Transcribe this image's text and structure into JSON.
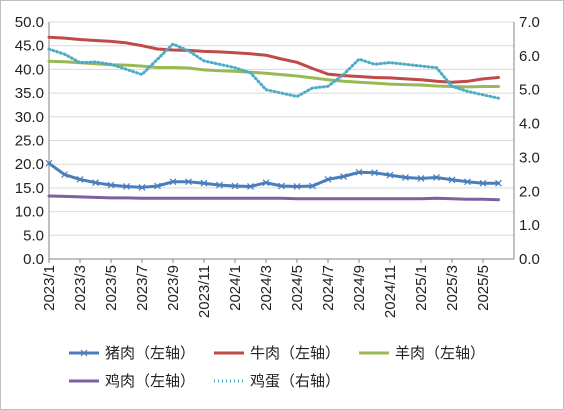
{
  "chart_data": {
    "type": "line",
    "title": "",
    "x_tick_labels": [
      "2023/1",
      "2023/3",
      "2023/5",
      "2023/7",
      "2023/9",
      "2023/11",
      "2024/1",
      "2024/3",
      "2024/5",
      "2024/7",
      "2024/9",
      "2024/11",
      "2025/1",
      "2025/3",
      "2025/5"
    ],
    "x_range": [
      "2023/1",
      "2025/6"
    ],
    "y_left": {
      "range": [
        0,
        50
      ],
      "tick_labels": [
        "0.0",
        "5.0",
        "10.0",
        "15.0",
        "20.0",
        "25.0",
        "30.0",
        "35.0",
        "40.0",
        "45.0",
        "50.0"
      ]
    },
    "y_right": {
      "range": [
        0,
        7
      ],
      "tick_labels": [
        "0.0",
        "1.0",
        "2.0",
        "3.0",
        "4.0",
        "5.0",
        "6.0",
        "7.0"
      ]
    },
    "grid": "horizontal, left axis",
    "legend_position": "bottom",
    "series": [
      {
        "name": "猪肉（左轴）",
        "axis": "left",
        "color": "#4a7ebb",
        "style": "line-with-markers",
        "points": [
          [
            "2023/1",
            20.2
          ],
          [
            "2023/2",
            17.8
          ],
          [
            "2023/3",
            16.8
          ],
          [
            "2023/4",
            16.1
          ],
          [
            "2023/5",
            15.6
          ],
          [
            "2023/6",
            15.3
          ],
          [
            "2023/7",
            15.1
          ],
          [
            "2023/8",
            15.4
          ],
          [
            "2023/9",
            16.3
          ],
          [
            "2023/10",
            16.3
          ],
          [
            "2023/11",
            16.0
          ],
          [
            "2023/12",
            15.6
          ],
          [
            "2024/1",
            15.4
          ],
          [
            "2024/2",
            15.3
          ],
          [
            "2024/3",
            16.1
          ],
          [
            "2024/4",
            15.4
          ],
          [
            "2024/5",
            15.3
          ],
          [
            "2024/6",
            15.4
          ],
          [
            "2024/7",
            16.8
          ],
          [
            "2024/8",
            17.4
          ],
          [
            "2024/9",
            18.3
          ],
          [
            "2024/10",
            18.2
          ],
          [
            "2024/11",
            17.7
          ],
          [
            "2024/12",
            17.2
          ],
          [
            "2025/1",
            17.0
          ],
          [
            "2025/2",
            17.2
          ],
          [
            "2025/3",
            16.7
          ],
          [
            "2025/4",
            16.3
          ],
          [
            "2025/5",
            16.0
          ],
          [
            "2025/6",
            16.0
          ]
        ]
      },
      {
        "name": "牛肉（左轴）",
        "axis": "left",
        "color": "#be4b48",
        "style": "line",
        "points": [
          [
            "2023/1",
            46.8
          ],
          [
            "2023/2",
            46.6
          ],
          [
            "2023/3",
            46.3
          ],
          [
            "2023/4",
            46.1
          ],
          [
            "2023/5",
            45.9
          ],
          [
            "2023/6",
            45.6
          ],
          [
            "2023/7",
            45.0
          ],
          [
            "2023/8",
            44.3
          ],
          [
            "2023/9",
            44.1
          ],
          [
            "2023/10",
            44.0
          ],
          [
            "2023/11",
            43.8
          ],
          [
            "2023/12",
            43.7
          ],
          [
            "2024/1",
            43.5
          ],
          [
            "2024/2",
            43.3
          ],
          [
            "2024/3",
            43.0
          ],
          [
            "2024/4",
            42.2
          ],
          [
            "2024/5",
            41.5
          ],
          [
            "2024/6",
            40.2
          ],
          [
            "2024/7",
            39.0
          ],
          [
            "2024/8",
            38.7
          ],
          [
            "2024/9",
            38.5
          ],
          [
            "2024/10",
            38.3
          ],
          [
            "2024/11",
            38.2
          ],
          [
            "2024/12",
            38.0
          ],
          [
            "2025/1",
            37.8
          ],
          [
            "2025/2",
            37.5
          ],
          [
            "2025/3",
            37.3
          ],
          [
            "2025/4",
            37.5
          ],
          [
            "2025/5",
            38.0
          ],
          [
            "2025/6",
            38.3
          ]
        ]
      },
      {
        "name": "羊肉（左轴）",
        "axis": "left",
        "color": "#98b954",
        "style": "line",
        "points": [
          [
            "2023/1",
            41.7
          ],
          [
            "2023/2",
            41.6
          ],
          [
            "2023/3",
            41.4
          ],
          [
            "2023/4",
            41.2
          ],
          [
            "2023/5",
            41.0
          ],
          [
            "2023/6",
            40.9
          ],
          [
            "2023/7",
            40.7
          ],
          [
            "2023/8",
            40.4
          ],
          [
            "2023/9",
            40.4
          ],
          [
            "2023/10",
            40.3
          ],
          [
            "2023/11",
            39.9
          ],
          [
            "2023/12",
            39.7
          ],
          [
            "2024/1",
            39.6
          ],
          [
            "2024/2",
            39.4
          ],
          [
            "2024/3",
            39.2
          ],
          [
            "2024/4",
            38.9
          ],
          [
            "2024/5",
            38.6
          ],
          [
            "2024/6",
            38.2
          ],
          [
            "2024/7",
            37.8
          ],
          [
            "2024/8",
            37.5
          ],
          [
            "2024/9",
            37.3
          ],
          [
            "2024/10",
            37.1
          ],
          [
            "2024/11",
            36.9
          ],
          [
            "2024/12",
            36.8
          ],
          [
            "2025/1",
            36.7
          ],
          [
            "2025/2",
            36.5
          ],
          [
            "2025/3",
            36.4
          ],
          [
            "2025/4",
            36.3
          ],
          [
            "2025/5",
            36.4
          ],
          [
            "2025/6",
            36.4
          ]
        ]
      },
      {
        "name": "鸡肉（左轴）",
        "axis": "left",
        "color": "#7d60a0",
        "style": "line",
        "points": [
          [
            "2023/1",
            13.3
          ],
          [
            "2023/2",
            13.2
          ],
          [
            "2023/3",
            13.1
          ],
          [
            "2023/4",
            13.0
          ],
          [
            "2023/5",
            12.9
          ],
          [
            "2023/6",
            12.9
          ],
          [
            "2023/7",
            12.8
          ],
          [
            "2023/8",
            12.8
          ],
          [
            "2023/9",
            12.8
          ],
          [
            "2023/10",
            12.8
          ],
          [
            "2023/11",
            12.8
          ],
          [
            "2023/12",
            12.8
          ],
          [
            "2024/1",
            12.8
          ],
          [
            "2024/2",
            12.8
          ],
          [
            "2024/3",
            12.8
          ],
          [
            "2024/4",
            12.8
          ],
          [
            "2024/5",
            12.7
          ],
          [
            "2024/6",
            12.7
          ],
          [
            "2024/7",
            12.7
          ],
          [
            "2024/8",
            12.7
          ],
          [
            "2024/9",
            12.7
          ],
          [
            "2024/10",
            12.7
          ],
          [
            "2024/11",
            12.7
          ],
          [
            "2024/12",
            12.7
          ],
          [
            "2025/1",
            12.7
          ],
          [
            "2025/2",
            12.8
          ],
          [
            "2025/3",
            12.7
          ],
          [
            "2025/4",
            12.6
          ],
          [
            "2025/5",
            12.6
          ],
          [
            "2025/6",
            12.5
          ]
        ]
      },
      {
        "name": "鸡蛋（右轴）",
        "axis": "right",
        "color": "#4bacc6",
        "style": "dotted",
        "points": [
          [
            "2023/1",
            6.2
          ],
          [
            "2023/2",
            6.05
          ],
          [
            "2023/3",
            5.8
          ],
          [
            "2023/4",
            5.82
          ],
          [
            "2023/5",
            5.75
          ],
          [
            "2023/6",
            5.6
          ],
          [
            "2023/7",
            5.45
          ],
          [
            "2023/8",
            5.9
          ],
          [
            "2023/9",
            6.35
          ],
          [
            "2023/10",
            6.15
          ],
          [
            "2023/11",
            5.85
          ],
          [
            "2023/12",
            5.75
          ],
          [
            "2024/1",
            5.65
          ],
          [
            "2024/2",
            5.5
          ],
          [
            "2024/3",
            5.0
          ],
          [
            "2024/4",
            4.9
          ],
          [
            "2024/5",
            4.8
          ],
          [
            "2024/6",
            5.05
          ],
          [
            "2024/7",
            5.1
          ],
          [
            "2024/8",
            5.45
          ],
          [
            "2024/9",
            5.9
          ],
          [
            "2024/10",
            5.75
          ],
          [
            "2024/11",
            5.8
          ],
          [
            "2024/12",
            5.75
          ],
          [
            "2025/1",
            5.7
          ],
          [
            "2025/2",
            5.65
          ],
          [
            "2025/3",
            5.1
          ],
          [
            "2025/4",
            4.95
          ],
          [
            "2025/5",
            4.85
          ],
          [
            "2025/6",
            4.75
          ]
        ]
      }
    ]
  }
}
